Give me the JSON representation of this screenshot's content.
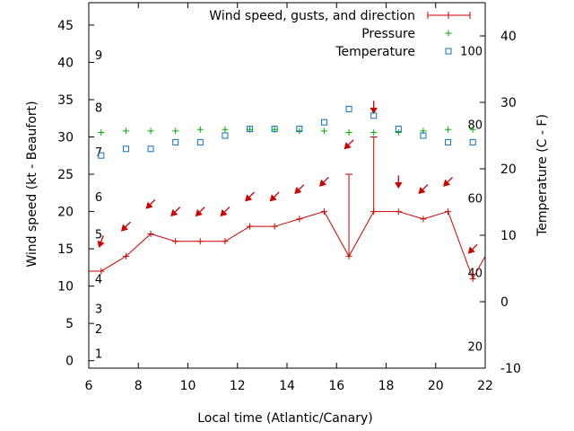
{
  "chart_data": {
    "type": "line",
    "xlabel": "Local time (Atlantic/Canary)",
    "ylabel_left": "Wind speed (kt - Beaufort)",
    "ylabel_right": "Temperature (C - F)",
    "xlim": [
      6,
      22
    ],
    "ylim_left": [
      -1,
      48
    ],
    "ylim_right": [
      -10,
      45
    ],
    "x_ticks": [
      6,
      8,
      10,
      12,
      14,
      16,
      18,
      20,
      22
    ],
    "y_left_ticks": [
      0,
      5,
      10,
      15,
      20,
      25,
      30,
      35,
      40,
      45
    ],
    "y_right_ticks": [
      -10,
      0,
      10,
      20,
      30,
      40
    ],
    "beaufort_scale": [
      {
        "label": "1",
        "kt": 1
      },
      {
        "label": "2",
        "kt": 4.3
      },
      {
        "label": "3",
        "kt": 7
      },
      {
        "label": "4",
        "kt": 11
      },
      {
        "label": "5",
        "kt": 17
      },
      {
        "label": "6",
        "kt": 22
      },
      {
        "label": "7",
        "kt": 28
      },
      {
        "label": "8",
        "kt": 34
      },
      {
        "label": "9",
        "kt": 41
      }
    ],
    "fahrenheit_scale": [
      {
        "label": "20",
        "celsius": -6.7
      },
      {
        "label": "40",
        "celsius": 4.4
      },
      {
        "label": "60",
        "celsius": 15.6
      },
      {
        "label": "80",
        "celsius": 26.7
      },
      {
        "label": "100",
        "celsius": 37.8
      }
    ],
    "legend": {
      "placement": "top-right",
      "wind_label": "Wind speed, gusts, and direction",
      "pressure_label": "Pressure",
      "temperature_label": "Temperature"
    },
    "colors": {
      "wind": "#cc0000",
      "pressure": "#00b000",
      "temperature": "#1070c0"
    },
    "wind": {
      "x": [
        6,
        6.5,
        7.5,
        8.5,
        9.5,
        10.5,
        11.5,
        12.5,
        13.5,
        14.5,
        15.5,
        16.5,
        17.5,
        18.5,
        19.5,
        20.5,
        21.5,
        22
      ],
      "speed": [
        12,
        12,
        14,
        17,
        16,
        16,
        16,
        18,
        18,
        19,
        20,
        14,
        20,
        20,
        19,
        20,
        11,
        14
      ],
      "gust_x": [
        16.5,
        17.5
      ],
      "gust_top": [
        25,
        30
      ],
      "arrow_x": [
        6.5,
        7.5,
        8.5,
        9.5,
        10.5,
        11.5,
        12.5,
        13.5,
        14.5,
        15.5,
        16.5,
        17.5,
        18.5,
        19.5,
        20.5,
        21.5
      ],
      "arrow_y": [
        16,
        18,
        21,
        20,
        20,
        20,
        22,
        22,
        23,
        24,
        29,
        34,
        24,
        23,
        24,
        15
      ],
      "arrow_dir_deg": [
        20,
        45,
        45,
        45,
        45,
        45,
        45,
        45,
        45,
        45,
        45,
        0,
        0,
        45,
        45,
        45
      ]
    },
    "pressure": {
      "x": [
        6.5,
        7.5,
        8.5,
        9.5,
        10.5,
        11.5,
        12.5,
        13.5,
        14.5,
        15.5,
        16.5,
        17.5,
        18.5,
        19.5,
        20.5,
        21.5
      ],
      "y": [
        30.6,
        30.8,
        30.8,
        30.8,
        31,
        31,
        31,
        31,
        30.8,
        30.8,
        30.6,
        30.6,
        30.6,
        30.8,
        31,
        31
      ]
    },
    "temperature": {
      "x": [
        6.5,
        7.5,
        8.5,
        9.5,
        10.5,
        11.5,
        12.5,
        13.5,
        14.5,
        15.5,
        16.5,
        17.5,
        18.5,
        19.5,
        20.5,
        21.5
      ],
      "celsius": [
        22,
        23,
        23,
        24,
        24,
        25,
        26,
        26,
        26,
        27,
        29,
        28,
        26,
        25,
        24,
        24
      ]
    }
  }
}
